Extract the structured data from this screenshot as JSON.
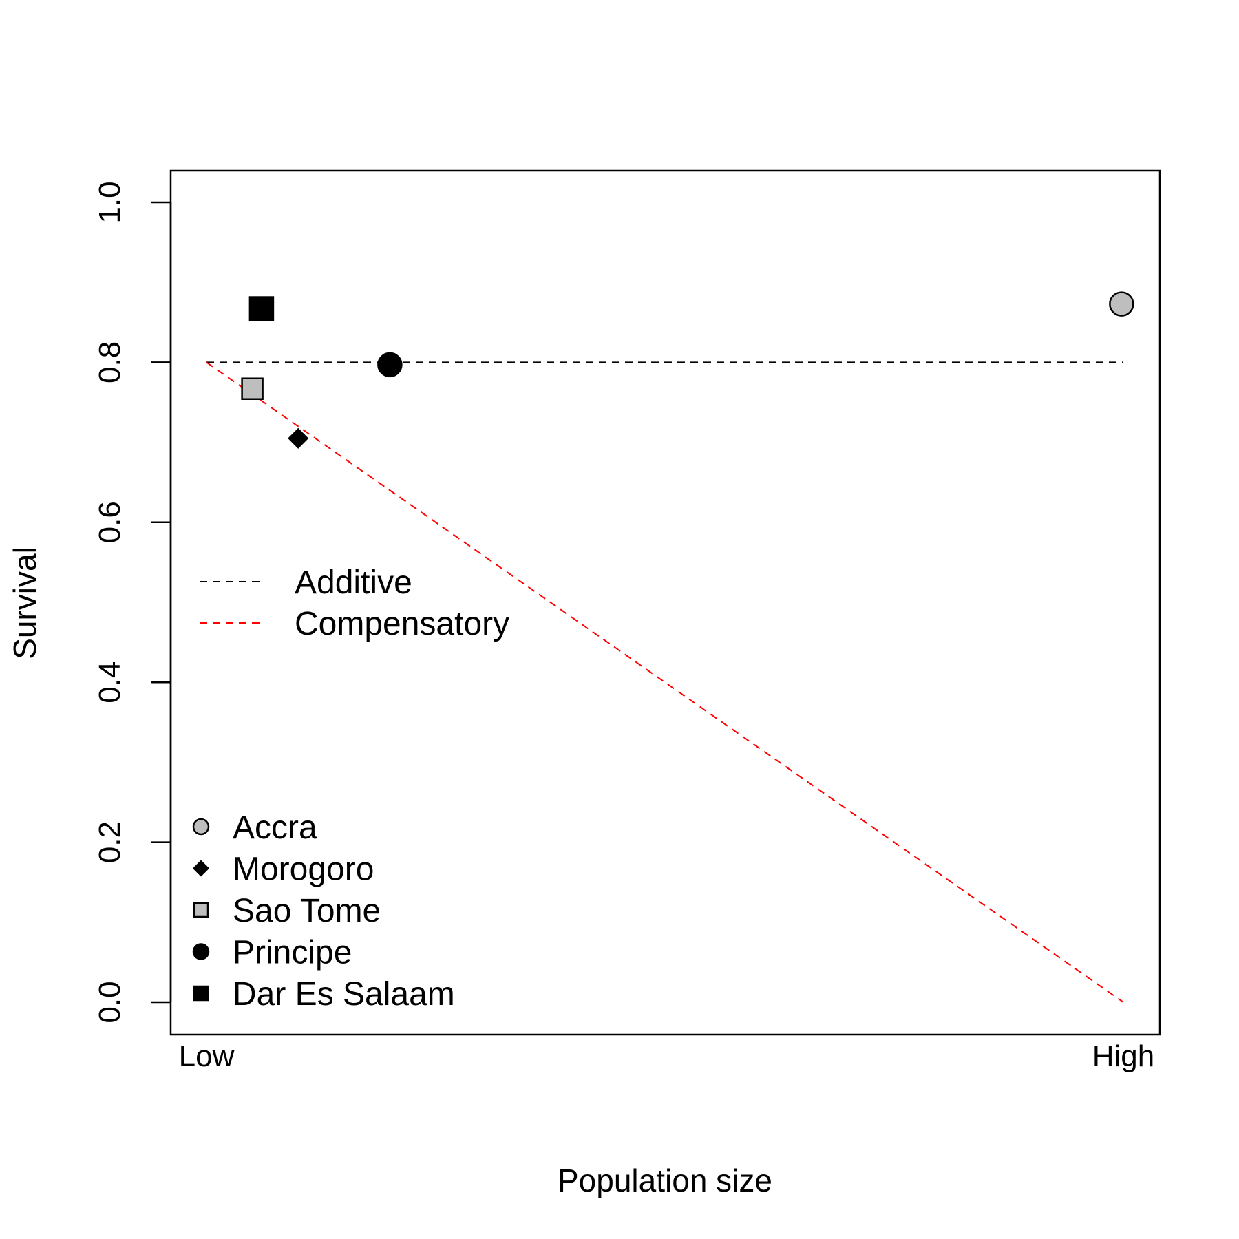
{
  "chart_data": {
    "type": "scatter",
    "title": "",
    "xlabel": "Population size",
    "ylabel": "Survival",
    "xlim": [
      0,
      1
    ],
    "ylim": [
      0,
      1
    ],
    "x_tick_labels": [
      "Low",
      "High"
    ],
    "y_ticks": [
      "0.0",
      "0.2",
      "0.4",
      "0.6",
      "0.8",
      "1.0"
    ],
    "grid": false,
    "points": [
      {
        "name": "Accra",
        "x": 0.998,
        "y": 0.873,
        "shape": "circle",
        "fill": "#bebebe",
        "stroke": "#000000",
        "size": "large"
      },
      {
        "name": "Morogoro",
        "x": 0.1,
        "y": 0.705,
        "shape": "diamond",
        "fill": "#000000",
        "stroke": "#000000",
        "size": "small"
      },
      {
        "name": "Sao Tome",
        "x": 0.05,
        "y": 0.767,
        "shape": "square",
        "fill": "#bebebe",
        "stroke": "#000000",
        "size": "medium"
      },
      {
        "name": "Principe",
        "x": 0.2,
        "y": 0.797,
        "shape": "circle",
        "fill": "#000000",
        "stroke": "#000000",
        "size": "large"
      },
      {
        "name": "Dar Es Salaam",
        "x": 0.06,
        "y": 0.867,
        "shape": "square",
        "fill": "#000000",
        "stroke": "#000000",
        "size": "large"
      }
    ],
    "lines": [
      {
        "name": "Additive",
        "x": [
          0,
          1
        ],
        "y": [
          0.8,
          0.8
        ],
        "color": "#000000",
        "dash": "dashed"
      },
      {
        "name": "Compensatory",
        "x": [
          0,
          1
        ],
        "y": [
          0.8,
          0.0
        ],
        "color": "#ff0000",
        "dash": "dashed"
      }
    ],
    "legends": [
      {
        "placement": "middle-left",
        "entries": [
          {
            "label": "Additive",
            "color": "#000000",
            "symbol": "dashed-line"
          },
          {
            "label": "Compensatory",
            "color": "#ff0000",
            "symbol": "dashed-line"
          }
        ]
      },
      {
        "placement": "bottom-left",
        "entries": [
          {
            "label": "Accra",
            "symbol": "circle",
            "fill": "#bebebe"
          },
          {
            "label": "Morogoro",
            "symbol": "diamond",
            "fill": "#000000"
          },
          {
            "label": "Sao Tome",
            "symbol": "square",
            "fill": "#bebebe"
          },
          {
            "label": "Principe",
            "symbol": "circle",
            "fill": "#000000"
          },
          {
            "label": "Dar Es Salaam",
            "symbol": "square",
            "fill": "#000000"
          }
        ]
      }
    ]
  }
}
